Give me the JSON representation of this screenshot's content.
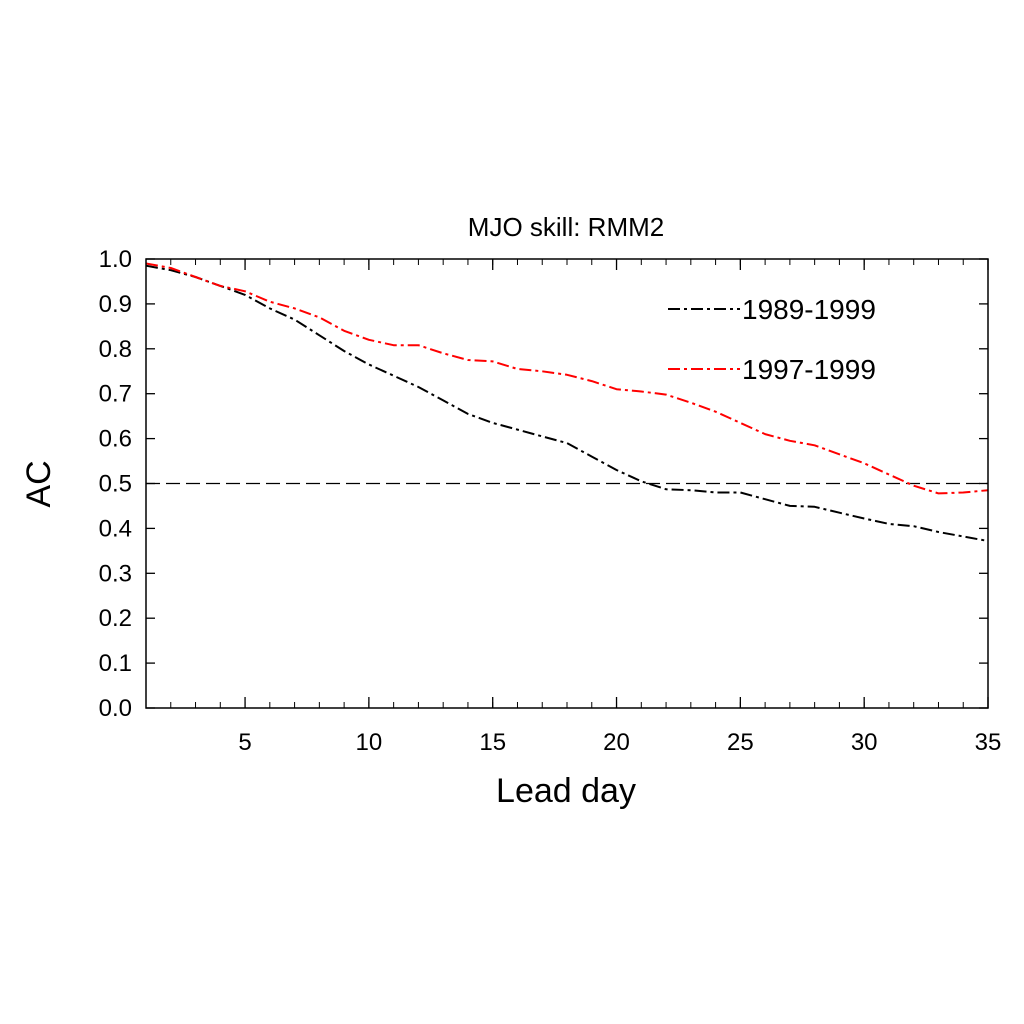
{
  "chart_data": {
    "type": "line",
    "title": "MJO skill: RMM2",
    "xlabel": "Lead day",
    "ylabel": "AC",
    "xlim": [
      1,
      35
    ],
    "ylim": [
      0.0,
      1.0
    ],
    "xticks": [
      5,
      10,
      15,
      20,
      25,
      30,
      35
    ],
    "yticks": [
      "0.0",
      "0.1",
      "0.2",
      "0.3",
      "0.4",
      "0.5",
      "0.6",
      "0.7",
      "0.8",
      "0.9",
      "1.0"
    ],
    "legend_position": "top-right",
    "reference_line": {
      "y": 0.5,
      "style": "dashed",
      "color": "#000000"
    },
    "series": [
      {
        "name": "1989-1999",
        "color": "#000000",
        "style": "dash-dot",
        "x": [
          1,
          2,
          3,
          4,
          5,
          6,
          7,
          8,
          9,
          10,
          11,
          12,
          13,
          14,
          15,
          16,
          17,
          18,
          19,
          20,
          21,
          22,
          23,
          24,
          25,
          26,
          27,
          28,
          29,
          30,
          31,
          32,
          33,
          34,
          35
        ],
        "values": [
          0.985,
          0.975,
          0.96,
          0.94,
          0.92,
          0.89,
          0.865,
          0.83,
          0.795,
          0.765,
          0.74,
          0.715,
          0.685,
          0.655,
          0.635,
          0.62,
          0.605,
          0.59,
          0.56,
          0.53,
          0.505,
          0.487,
          0.485,
          0.48,
          0.48,
          0.465,
          0.45,
          0.448,
          0.435,
          0.422,
          0.41,
          0.405,
          0.392,
          0.382,
          0.372
        ]
      },
      {
        "name": "1997-1999",
        "color": "#ff0000",
        "style": "dash-dot",
        "x": [
          1,
          2,
          3,
          4,
          5,
          6,
          7,
          8,
          9,
          10,
          11,
          12,
          13,
          14,
          15,
          16,
          17,
          18,
          19,
          20,
          21,
          22,
          23,
          24,
          25,
          26,
          27,
          28,
          29,
          30,
          31,
          32,
          33,
          34,
          35
        ],
        "values": [
          0.99,
          0.98,
          0.96,
          0.94,
          0.928,
          0.905,
          0.89,
          0.87,
          0.84,
          0.82,
          0.808,
          0.808,
          0.79,
          0.775,
          0.772,
          0.755,
          0.75,
          0.742,
          0.728,
          0.71,
          0.705,
          0.698,
          0.68,
          0.66,
          0.635,
          0.61,
          0.595,
          0.585,
          0.565,
          0.545,
          0.52,
          0.495,
          0.478,
          0.48,
          0.485
        ]
      }
    ]
  }
}
